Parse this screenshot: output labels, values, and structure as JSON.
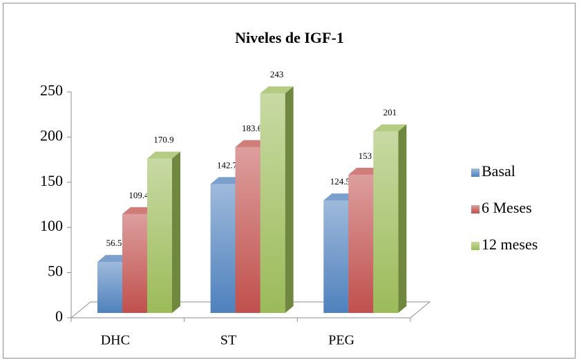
{
  "chart_data": {
    "type": "bar3d",
    "title": "Niveles de IGF-1",
    "categories": [
      "DHC",
      "ST",
      "PEG"
    ],
    "series": [
      {
        "name": "Basal",
        "color": "#4f81bd",
        "values": [
          56.5,
          142.7,
          124.5
        ]
      },
      {
        "name": "6 Meses",
        "color": "#c0504d",
        "values": [
          109.4,
          183.6,
          153
        ]
      },
      {
        "name": "12 meses",
        "color": "#9bbb59",
        "values": [
          170.9,
          243,
          201
        ]
      }
    ],
    "ylim": [
      0,
      250
    ],
    "yticks": [
      0,
      50,
      100,
      150,
      200,
      250
    ],
    "legend": "right"
  }
}
